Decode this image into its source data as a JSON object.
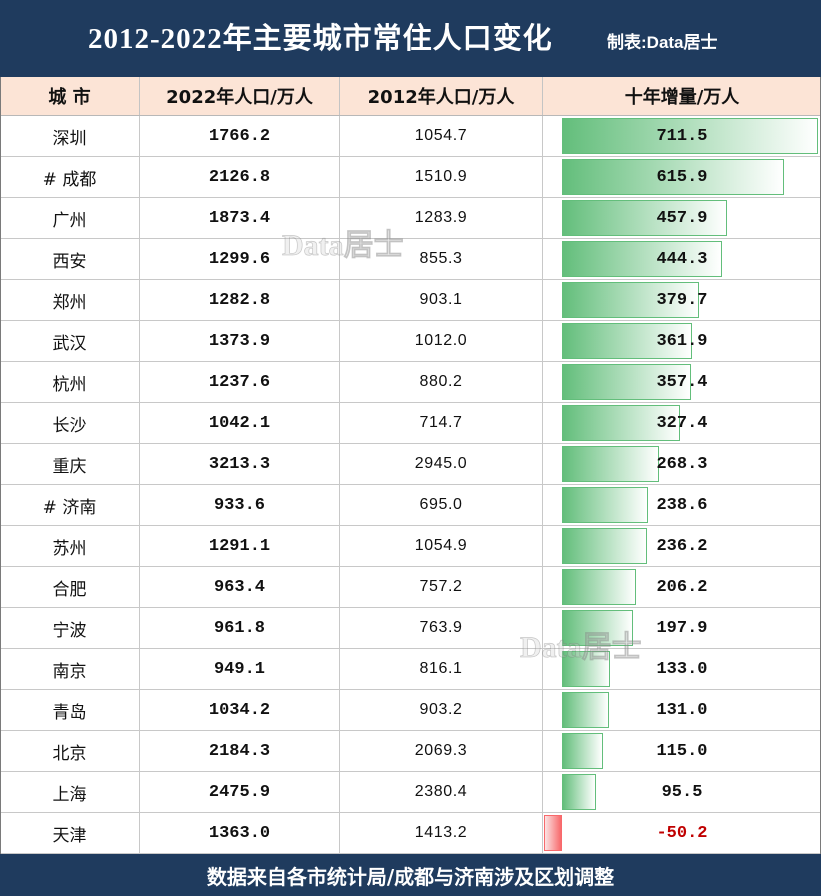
{
  "header": {
    "credit": "制表:Data居士"
  },
  "watermark": "Data居士",
  "footer": {
    "note": "数据来自各市统计局/成都与济南涉及区划调整"
  },
  "colors": {
    "header_bg": "#1f3b5e",
    "column_header_bg": "#fce4d6",
    "positive_bar": "#63be7b",
    "negative_bar": "#f8696b",
    "negative_text": "#c00000"
  },
  "chart_data": {
    "type": "table",
    "title": "2012-2022年主要城市常住人口变化",
    "columns": [
      "城 市",
      "2022年人口/万人",
      "2012年人口/万人",
      "十年增量/万人"
    ],
    "data_bar_column": 3,
    "rows": [
      {
        "city": "深圳",
        "pop_2022": 1766.2,
        "pop_2012": 1054.7,
        "increase": 711.5
      },
      {
        "city": "# 成都",
        "pop_2022": 2126.8,
        "pop_2012": 1510.9,
        "increase": 615.9
      },
      {
        "city": "广州",
        "pop_2022": 1873.4,
        "pop_2012": 1283.9,
        "increase": 457.9
      },
      {
        "city": "西安",
        "pop_2022": 1299.6,
        "pop_2012": 855.3,
        "increase": 444.3
      },
      {
        "city": "郑州",
        "pop_2022": 1282.8,
        "pop_2012": 903.1,
        "increase": 379.7
      },
      {
        "city": "武汉",
        "pop_2022": 1373.9,
        "pop_2012": 1012.0,
        "increase": 361.9
      },
      {
        "city": "杭州",
        "pop_2022": 1237.6,
        "pop_2012": 880.2,
        "increase": 357.4
      },
      {
        "city": "长沙",
        "pop_2022": 1042.1,
        "pop_2012": 714.7,
        "increase": 327.4
      },
      {
        "city": "重庆",
        "pop_2022": 3213.3,
        "pop_2012": 2945.0,
        "increase": 268.3
      },
      {
        "city": "# 济南",
        "pop_2022": 933.6,
        "pop_2012": 695.0,
        "increase": 238.6
      },
      {
        "city": "苏州",
        "pop_2022": 1291.1,
        "pop_2012": 1054.9,
        "increase": 236.2
      },
      {
        "city": "合肥",
        "pop_2022": 963.4,
        "pop_2012": 757.2,
        "increase": 206.2
      },
      {
        "city": "宁波",
        "pop_2022": 961.8,
        "pop_2012": 763.9,
        "increase": 197.9
      },
      {
        "city": "南京",
        "pop_2022": 949.1,
        "pop_2012": 816.1,
        "increase": 133.0
      },
      {
        "city": "青岛",
        "pop_2022": 1034.2,
        "pop_2012": 903.2,
        "increase": 131.0
      },
      {
        "city": "北京",
        "pop_2022": 2184.3,
        "pop_2012": 2069.3,
        "increase": 115.0
      },
      {
        "city": "上海",
        "pop_2022": 2475.9,
        "pop_2012": 2380.4,
        "increase": 95.5
      },
      {
        "city": "天津",
        "pop_2022": 1363.0,
        "pop_2012": 1413.2,
        "increase": -50.2
      }
    ]
  }
}
